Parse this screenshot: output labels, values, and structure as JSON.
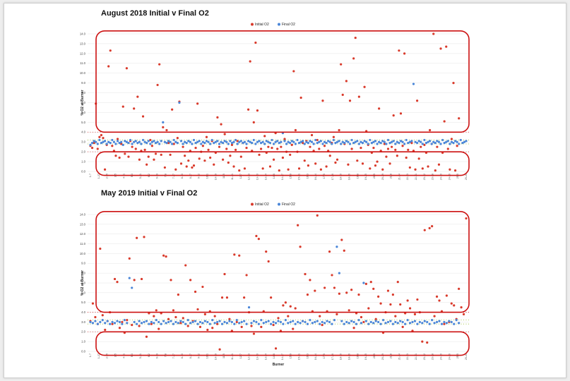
{
  "colors": {
    "initial": "#d93a2b",
    "final": "#4a86d8",
    "highlight": "#cc1111",
    "band_green": "#99bb33",
    "band_red": "#cc2222",
    "grid": "#e6e6e6"
  },
  "chart_data": [
    {
      "type": "scatter",
      "title": "August 2018 Initial v Final O2",
      "ylabel": "% O2 at Burner",
      "xlabel": "",
      "ylim": [
        0,
        14
      ],
      "yticks": [
        "0.0",
        "1.0",
        "2.0",
        "3.0",
        "4.0",
        "5.0",
        "6.0",
        "7.0",
        "8.0",
        "9.0",
        "10.0",
        "11.0",
        "12.0",
        "13.0",
        "14.0"
      ],
      "legend": {
        "position": "top-center",
        "entries": [
          "Initial O2",
          "Final O2"
        ]
      },
      "grid": true,
      "reference_lines": {
        "upper": 4.0,
        "band_high": 3.2,
        "band_low": 2.8,
        "lower": 2.0
      },
      "xtick_labels": [
        "1-7",
        "1-27",
        "2-15",
        "3-5",
        "4-11",
        "5-3",
        "5-21",
        "6-2",
        "6-19",
        "7-8",
        "7-27",
        "8-10",
        "8-27",
        "9-12",
        "10-1",
        "10-19",
        "11-5",
        "11-21",
        "12-7",
        "12-23",
        "13-10",
        "13-24",
        "14-8",
        "14-27",
        "15-9",
        "15-21",
        "16-3",
        "16-24",
        "17-5",
        "17-26",
        "18-10",
        "18-26",
        "19-8",
        "19-25",
        "20-5",
        "20-29",
        "21-8",
        "21-24",
        "22-13",
        "22-31",
        "23-12",
        "23-28",
        "24-10",
        "24-26",
        "25-5",
        "25-26"
      ],
      "series": [
        {
          "name": "Initial O2",
          "values": [
            2.6,
            2.4,
            2.9,
            6.9,
            2.3,
            3.5,
            3.7,
            3.4,
            0.2,
            2.7,
            10.7,
            12.3,
            2.6,
            2.1,
            1.6,
            3.3,
            1.4,
            2.8,
            6.6,
            1.8,
            10.5,
            1.5,
            3.1,
            2.5,
            6.4,
            2.3,
            7.6,
            1.2,
            2.1,
            5.6,
            2.2,
            0.7,
            1.5,
            3.2,
            2.6,
            1.2,
            1.8,
            8.8,
            10.9,
            1.7,
            4.5,
            0.4,
            4.2,
            2.9,
            1.7,
            6.3,
            2.8,
            0.2,
            3.4,
            7.1,
            0.8,
            2.5,
            1.6,
            0.5,
            1.1,
            2.1,
            0.4,
            0.6,
            2.4,
            6.9,
            1.3,
            2.0,
            2.6,
            1.1,
            3.5,
            2.2,
            1.4,
            3.1,
            0.7,
            1.9,
            5.5,
            2.5,
            4.8,
            1.2,
            3.8,
            2.3,
            0.9,
            1.6,
            2.7,
            0.5,
            2.2,
            3.1,
            0.1,
            1.5,
            2.9,
            0.3,
            2.4,
            6.3,
            11.2,
            2.1,
            5.0,
            13.1,
            6.2,
            1.7,
            2.3,
            0.3,
            3.6,
            1.9,
            2.5,
            0.5,
            2.4,
            1.2,
            3.9,
            2.3,
            0.1,
            2.5,
            1.4,
            3.3,
            2.0,
            0.2,
            1.7,
            2.7,
            10.2,
            4.2,
            2.0,
            0.3,
            7.5,
            2.9,
            1.1,
            3.1,
            0.6,
            2.5,
            3.7,
            2.1,
            0.8,
            3.2,
            2.3,
            0.2,
            7.2,
            2.6,
            0.5,
            2.1,
            1.6,
            2.9,
            3.5,
            0.9,
            1.2,
            4.2,
            10.9,
            7.8,
            2.8,
            9.2,
            0.7,
            7.2,
            2.3,
            11.5,
            13.6,
            1.1,
            7.6,
            2.4,
            0.8,
            8.6,
            4.1,
            2.7,
            0.3,
            1.9,
            2.4,
            0.6,
            1.0,
            6.4,
            2.1,
            0.2,
            2.8,
            1.5,
            2.3,
            0.8,
            2.5,
            5.7,
            2.2,
            1.6,
            12.3,
            5.9,
            2.6,
            12.0,
            1.4,
            2.2,
            0.4,
            2.9,
            2.1,
            0.2,
            7.2,
            1.3,
            2.5,
            0.3,
            2.7,
            1.9,
            0.5,
            4.2,
            2.8,
            14.0,
            0.1,
            2.5,
            0.7,
            12.5,
            1.9,
            5.1,
            12.7,
            2.3,
            0.2,
            3.3,
            9.0,
            0.1,
            2.6,
            5.4
          ]
        },
        {
          "name": "Final O2",
          "values": [
            2.7,
            2.9,
            3.1,
            3.0,
            2.8,
            3.2,
            2.9,
            3.0,
            3.1,
            2.8,
            3.0,
            2.9,
            3.2,
            3.0,
            2.8,
            3.1,
            2.9,
            3.0,
            2.7,
            3.1,
            3.0,
            2.9,
            3.2,
            2.8,
            3.0,
            3.1,
            2.9,
            3.0,
            2.8,
            3.2,
            3.0,
            2.9,
            3.1,
            2.8,
            3.0,
            3.1,
            2.9,
            3.0,
            2.8,
            3.1,
            5.0,
            3.0,
            2.9,
            3.1,
            3.0,
            2.8,
            3.2,
            3.0,
            2.9,
            7.0,
            3.1,
            2.8,
            3.0,
            2.9,
            3.1,
            3.0,
            2.8,
            3.2,
            2.9,
            3.0,
            3.1,
            2.8,
            3.0,
            2.9,
            3.1,
            3.0,
            2.8,
            3.2,
            2.9,
            3.0,
            3.1,
            2.8,
            3.0,
            2.9,
            3.1,
            3.0,
            2.8,
            3.1,
            2.9,
            3.0,
            3.2,
            2.8,
            3.0,
            3.1,
            2.9,
            3.0,
            2.8,
            3.1,
            3.0,
            2.9,
            3.2,
            2.8,
            3.0,
            3.1,
            2.9,
            3.0,
            2.8,
            3.1,
            3.0,
            2.9,
            3.2,
            2.8,
            3.0,
            3.1,
            2.9,
            3.0,
            3.9,
            3.1,
            2.8,
            3.0,
            2.9,
            3.1,
            3.0,
            2.8,
            3.2,
            2.9,
            3.0,
            3.1,
            2.8,
            3.0,
            2.9,
            3.1,
            3.0,
            2.8,
            3.2,
            2.9,
            3.0,
            3.1,
            2.8,
            3.0,
            2.9,
            3.1,
            3.0,
            2.8,
            3.2,
            2.9,
            3.0,
            3.1,
            2.8,
            3.0,
            2.9,
            3.1,
            3.0,
            2.8,
            3.2,
            2.9,
            3.0,
            3.1,
            2.8,
            3.0,
            2.9,
            3.1,
            3.0,
            2.8,
            3.2,
            2.9,
            3.0,
            3.1,
            2.8,
            3.0,
            2.9,
            3.1,
            3.0,
            2.8,
            3.2,
            2.9,
            3.0,
            3.1,
            2.8,
            3.0,
            2.9,
            3.1,
            3.0,
            2.8,
            3.2,
            2.9,
            3.0,
            3.1,
            8.9,
            3.0,
            2.9,
            3.1,
            3.0,
            2.8,
            3.2,
            2.9,
            3.0,
            3.1,
            2.8,
            3.0,
            2.9,
            3.1,
            3.0,
            2.8,
            3.2,
            2.9,
            3.0,
            3.1,
            2.8,
            3.0,
            2.9,
            3.1,
            3.0,
            2.8,
            3.2,
            2.9,
            3.0,
            3.1
          ]
        }
      ]
    },
    {
      "type": "scatter",
      "title": "May 2019 Initial v Final O2",
      "ylabel": "% O2 at Burner",
      "xlabel": "Burner",
      "ylim": [
        0,
        14
      ],
      "yticks": [
        "0.0",
        "1.0",
        "2.0",
        "3.0",
        "4.0",
        "5.0",
        "6.0",
        "7.0",
        "8.0",
        "9.0",
        "10.0",
        "11.0",
        "12.0",
        "13.0",
        "14.0"
      ],
      "legend": {
        "position": "top-center",
        "entries": [
          "Initial O2",
          "Final O2"
        ]
      },
      "grid": true,
      "reference_lines": {
        "upper": 4.0,
        "band_high": 3.2,
        "band_low": 2.8,
        "lower": 2.0
      },
      "xtick_labels": [
        "1-7",
        "1-27",
        "2-15",
        "3-5",
        "4-11",
        "5-3",
        "5-21",
        "6-2",
        "6-19",
        "7-8",
        "7-27",
        "8-10",
        "8-27",
        "9-12",
        "10-1",
        "10-19",
        "11-5",
        "11-21",
        "12-7",
        "12-23",
        "13-10",
        "13-24",
        "14-8",
        "14-27",
        "15-9",
        "15-21",
        "16-3",
        "16-24",
        "17-5",
        "17-26",
        "18-10",
        "18-26",
        "19-8",
        "19-25",
        "20-5",
        "20-29",
        "21-8",
        "21-24",
        "22-13",
        "22-31",
        "23-12",
        "23-28",
        "24-10",
        "24-26",
        "25-5",
        "25-26"
      ],
      "series": [
        {
          "name": "Initial O2",
          "values": [
            3.1,
            4.9,
            3.5,
            2.8,
            10.5,
            3.7,
            2.2,
            3.1,
            4.0,
            2.8,
            7.4,
            7.1,
            2.4,
            3.0,
            1.9,
            3.2,
            9.5,
            2.7,
            7.3,
            11.6,
            2.6,
            7.4,
            11.7,
            1.5,
            3.9,
            2.8,
            3.6,
            4.2,
            2.3,
            3.9,
            9.8,
            9.7,
            3.3,
            7.3,
            4.2,
            3.5,
            5.8,
            2.9,
            3.4,
            8.8,
            2.6,
            7.3,
            3.1,
            6.1,
            4.3,
            2.5,
            6.6,
            3.8,
            2.2,
            4.1,
            2.4,
            3.6,
            2.8,
            0.2,
            5.5,
            7.9,
            5.5,
            3.3,
            2.1,
            9.9,
            3.0,
            9.8,
            2.5,
            5.5,
            7.8,
            4.0,
            2.6,
            1.8,
            11.8,
            11.5,
            2.5,
            4.1,
            10.2,
            9.2,
            5.5,
            2.7,
            0.3,
            3.4,
            2.1,
            4.7,
            5.0,
            3.6,
            4.6,
            2.3,
            4.4,
            12.9,
            10.7,
            3.1,
            7.9,
            5.8,
            7.3,
            4.1,
            6.2,
            13.9,
            3.6,
            2.7,
            6.5,
            4.1,
            10.2,
            7.8,
            6.5,
            3.8,
            5.9,
            11.4,
            10.3,
            6.0,
            4.2,
            6.3,
            2.4,
            3.9,
            5.8,
            3.5,
            3.0,
            6.9,
            4.4,
            7.1,
            6.4,
            3.3,
            5.6,
            4.9,
            1.9,
            4.0,
            6.2,
            4.8,
            5.8,
            3.6,
            7.1,
            4.8,
            2.5,
            3.9,
            5.2,
            4.4,
            2.1,
            3.8,
            5.3,
            4.0,
            1.0,
            12.4,
            0.9,
            12.6,
            12.8,
            3.6,
            5.6,
            5.2,
            4.1,
            2.8,
            5.7,
            3.0,
            4.9,
            4.7,
            3.3,
            6.4,
            4.5,
            3.8,
            13.6
          ]
        },
        {
          "name": "Final O2",
          "values": [
            3.0,
            2.9,
            3.1,
            2.8,
            3.0,
            3.2,
            2.9,
            3.1,
            2.8,
            3.0,
            2.9,
            3.1,
            3.0,
            2.8,
            3.2,
            2.9,
            7.5,
            6.5,
            3.0,
            2.8,
            3.1,
            2.9,
            3.0,
            3.1,
            2.8,
            3.0,
            2.9,
            3.2,
            3.0,
            2.8,
            3.1,
            2.9,
            3.0,
            3.1,
            2.8,
            3.0,
            2.9,
            3.1,
            3.0,
            2.8,
            3.2,
            2.9,
            3.0,
            3.1,
            2.8,
            3.0,
            2.9,
            3.1,
            3.0,
            2.8,
            3.2,
            2.9,
            3.0,
            3.1,
            2.8,
            3.0,
            2.9,
            3.1,
            3.0,
            2.8,
            3.2,
            2.9,
            3.0,
            3.1,
            2.8,
            4.5,
            2.9,
            3.1,
            3.0,
            2.8,
            3.2,
            2.9,
            3.0,
            3.1,
            2.8,
            3.0,
            2.9,
            3.1,
            3.0,
            2.8,
            3.2,
            2.9,
            3.0,
            3.1,
            2.8,
            3.0,
            2.9,
            3.1,
            3.0,
            2.8,
            3.2,
            2.9,
            3.0,
            3.1,
            2.8,
            3.0,
            2.9,
            3.1,
            3.0,
            2.8,
            3.2,
            10.7,
            8.0,
            3.1,
            2.8,
            3.0,
            2.9,
            3.1,
            3.0,
            2.8,
            3.2,
            2.9,
            7.0,
            3.1,
            2.8,
            3.0,
            2.9,
            3.1,
            3.0,
            2.8,
            3.2,
            2.9,
            3.0,
            3.1,
            2.8,
            3.0,
            2.9,
            3.1,
            3.0,
            2.8,
            3.2,
            2.9,
            3.0,
            3.1,
            2.8,
            3.0,
            2.9,
            3.1,
            3.0,
            2.8,
            3.2,
            2.9,
            3.0,
            3.1,
            2.8,
            3.0,
            2.9,
            3.1,
            3.0,
            2.8,
            3.2,
            2.9
          ]
        }
      ]
    }
  ]
}
